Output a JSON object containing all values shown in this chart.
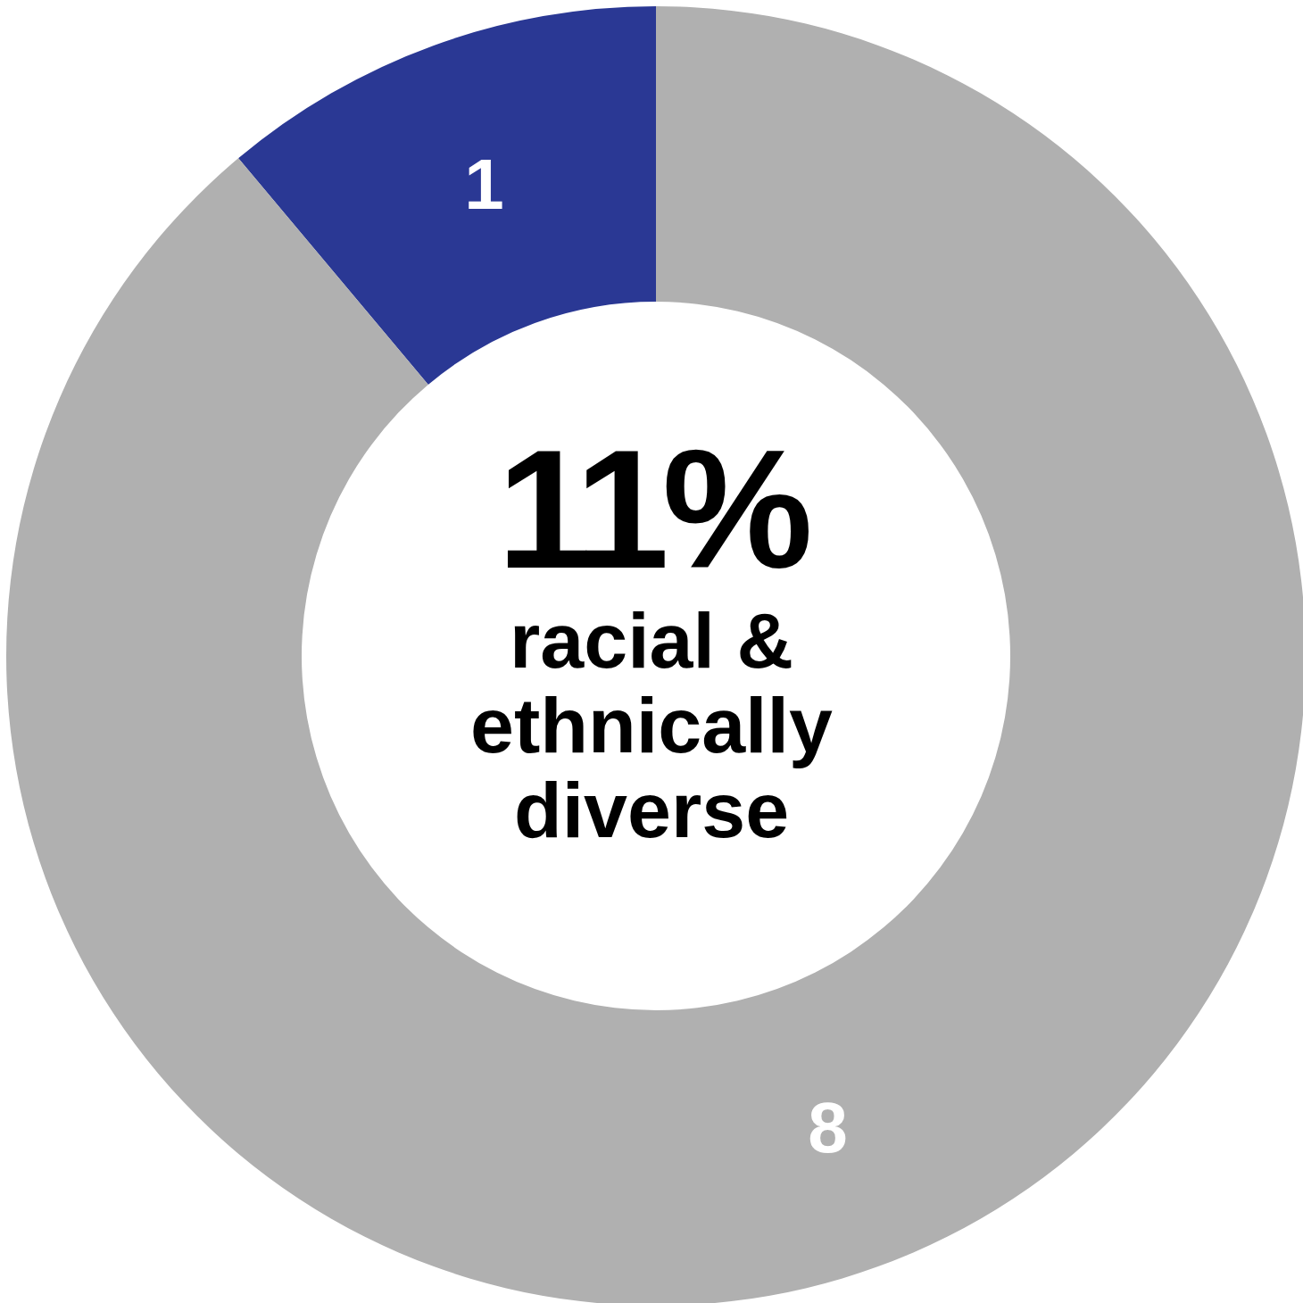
{
  "chart_data": {
    "type": "donut",
    "categories": [
      null,
      null
    ],
    "values": [
      1,
      8
    ],
    "colors": [
      "#2a3894",
      "#b0b0b0"
    ],
    "data_labels": true,
    "annotations": [
      "11%",
      "racial & ethnically diverse"
    ]
  }
}
